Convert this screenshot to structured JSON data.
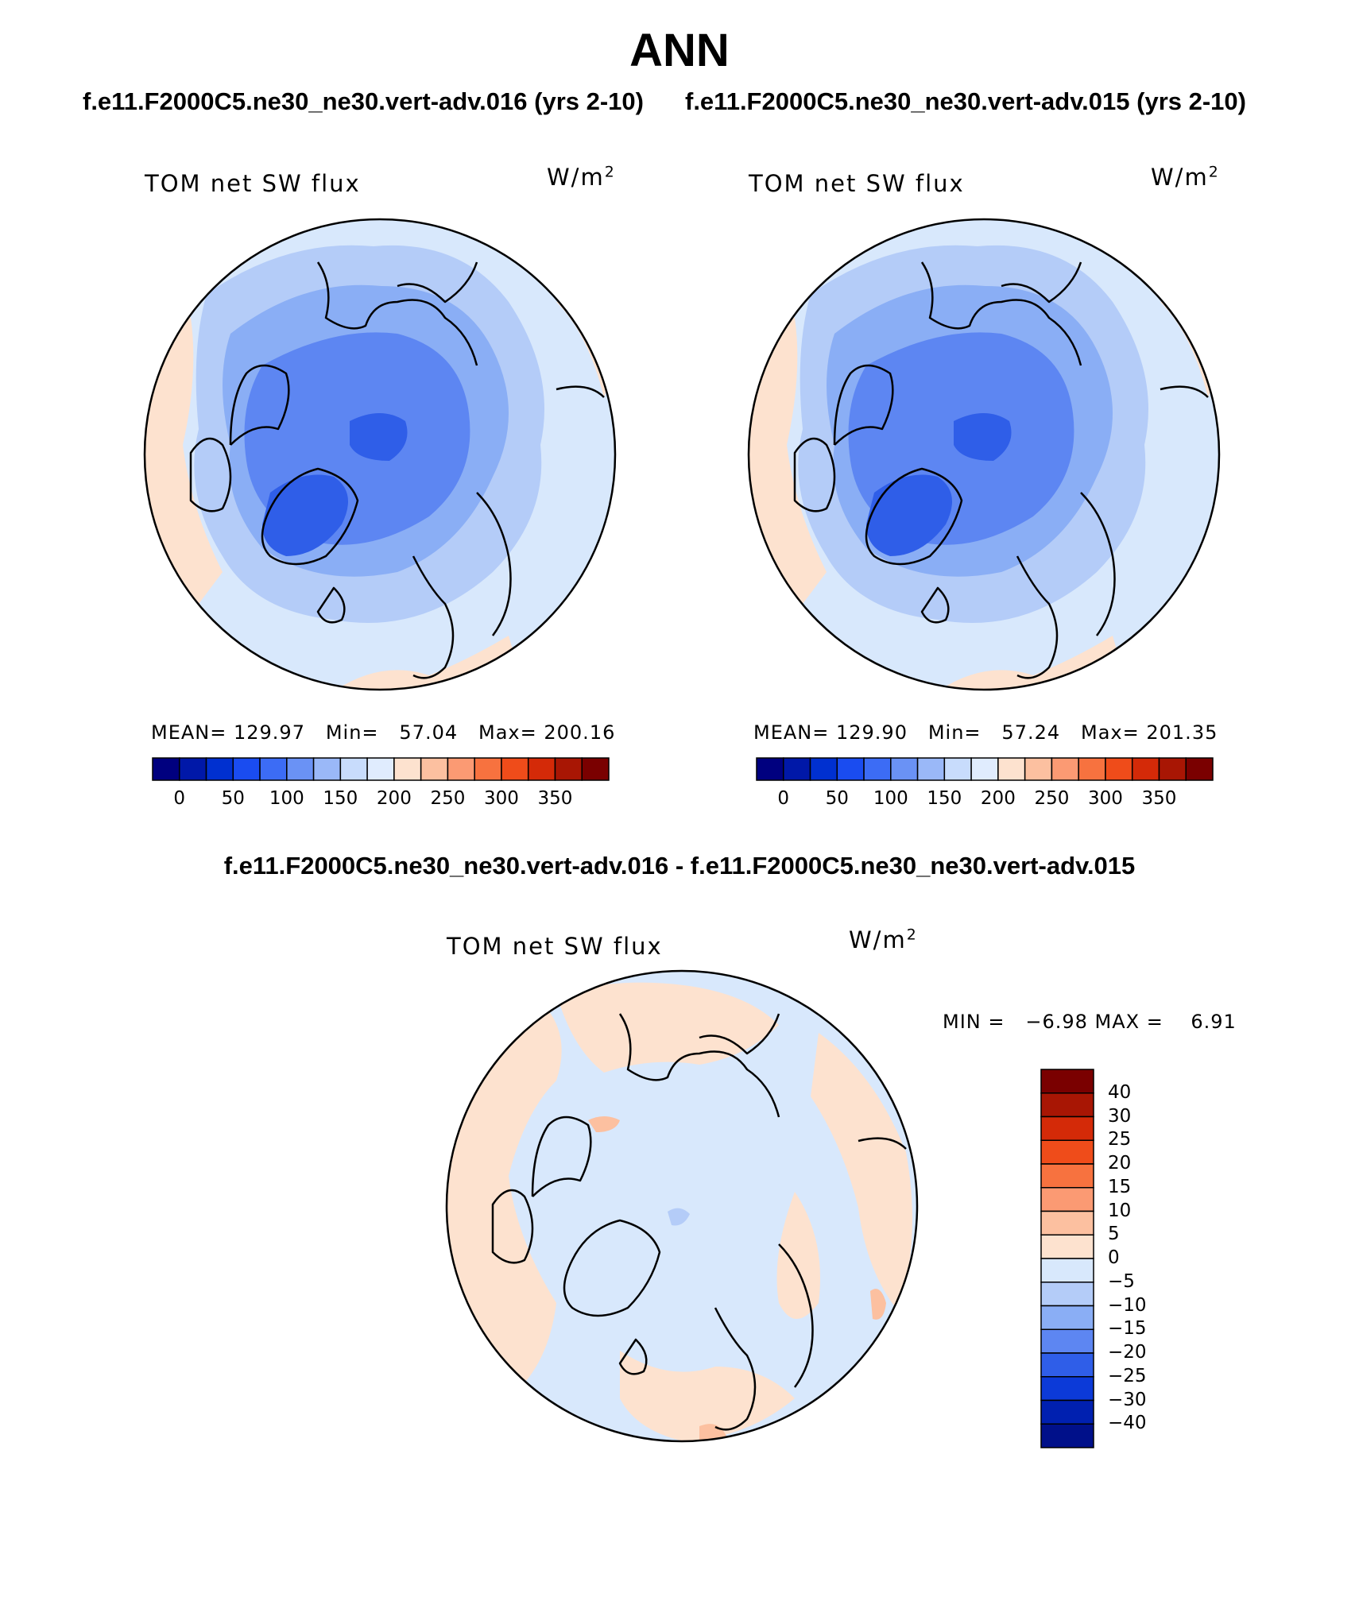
{
  "title": "ANN",
  "case_titles": [
    "f.e11.F2000C5.ne30_ne30.vert-adv.016 (yrs 2-10)",
    "f.e11.F2000C5.ne30_ne30.vert-adv.015 (yrs 2-10)"
  ],
  "diff_title": "f.e11.F2000C5.ne30_ne30.vert-adv.016 - f.e11.F2000C5.ne30_ne30.vert-adv.015",
  "panels": [
    {
      "variable": "TOM net SW flux",
      "units_base": "W/m",
      "units_exp": "2",
      "stats": "MEAN= 129.97   Min=   57.04   Max= 200.16",
      "colorbar_ticks": [
        "0",
        "50",
        "100",
        "150",
        "200",
        "250",
        "300",
        "350"
      ]
    },
    {
      "variable": "TOM net SW flux",
      "units_base": "W/m",
      "units_exp": "2",
      "stats": "MEAN= 129.90   Min=   57.24   Max= 201.35",
      "colorbar_ticks": [
        "0",
        "50",
        "100",
        "150",
        "200",
        "250",
        "300",
        "350"
      ]
    }
  ],
  "diff_panel": {
    "variable": "TOM net SW flux",
    "units_base": "W/m",
    "units_exp": "2",
    "stats": "MIN =   −6.98 MAX =    6.91",
    "colorbar_ticks": [
      "40",
      "30",
      "25",
      "20",
      "15",
      "10",
      "5",
      "0",
      "−5",
      "−10",
      "−15",
      "−20",
      "−25",
      "−30",
      "−40"
    ]
  },
  "colors": {
    "abs_scale": [
      "#00007f",
      "#0018a8",
      "#0030d0",
      "#1a4cf0",
      "#3c6cf5",
      "#6a92f5",
      "#9ab8f8",
      "#c8dcfc",
      "#e0ecfe",
      "#fde2cf",
      "#fcc0a0",
      "#fb9a73",
      "#f7723f",
      "#ef4c1a",
      "#d42a08",
      "#a81604",
      "#7a0000"
    ],
    "diff_scale": [
      "#7a0000",
      "#a81604",
      "#d42a08",
      "#ef4c1a",
      "#f7723f",
      "#fb9a73",
      "#fcc0a0",
      "#fde2cf",
      "#d8e8fc",
      "#b4ccf8",
      "#8aaef5",
      "#5d86f2",
      "#2f5ee8",
      "#0c3ad8",
      "#0020b0",
      "#00108a"
    ],
    "map_low": "#1a4cf0",
    "map_mid": "#3c6cf5",
    "map_light": "#9ab8f8",
    "map_pale": "#d8e8fc",
    "map_warm": "#fde2cf",
    "map_warm2": "#fcc0a0"
  }
}
